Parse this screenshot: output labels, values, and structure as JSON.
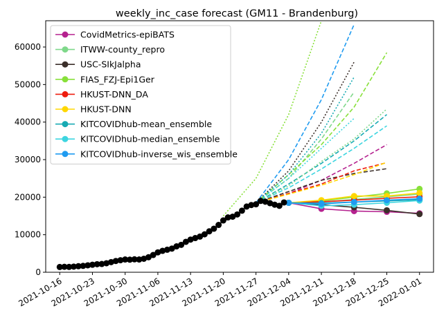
{
  "chart_data": {
    "type": "line",
    "title": "weekly_inc_case forecast (GM11 - Brandenburg)",
    "xlabel": "",
    "ylabel": "",
    "ylim": [
      0,
      67000
    ],
    "xlim": [
      "2021-10-13",
      "2022-01-04"
    ],
    "x_tick_labels": [
      "2021-10-16",
      "2021-10-23",
      "2021-10-30",
      "2021-11-06",
      "2021-11-13",
      "2021-11-20",
      "2021-11-27",
      "2021-12-04",
      "2021-12-11",
      "2021-12-18",
      "2021-12-25",
      "2022-01-01"
    ],
    "y_ticks": [
      0,
      10000,
      20000,
      30000,
      40000,
      50000,
      60000
    ],
    "y_tick_labels": [
      "0",
      "10000",
      "20000",
      "30000",
      "40000",
      "50000",
      "60000"
    ],
    "grid": false,
    "legend_position": "top-left",
    "observed": {
      "color": "#000000",
      "x": [
        "2021-10-16",
        "2021-10-17",
        "2021-10-18",
        "2021-10-19",
        "2021-10-20",
        "2021-10-21",
        "2021-10-22",
        "2021-10-23",
        "2021-10-24",
        "2021-10-25",
        "2021-10-26",
        "2021-10-27",
        "2021-10-28",
        "2021-10-29",
        "2021-10-30",
        "2021-10-31",
        "2021-11-01",
        "2021-11-02",
        "2021-11-03",
        "2021-11-04",
        "2021-11-05",
        "2021-11-06",
        "2021-11-07",
        "2021-11-08",
        "2021-11-09",
        "2021-11-10",
        "2021-11-11",
        "2021-11-12",
        "2021-11-13",
        "2021-11-14",
        "2021-11-15",
        "2021-11-16",
        "2021-11-17",
        "2021-11-18",
        "2021-11-19",
        "2021-11-20",
        "2021-11-21",
        "2021-11-22",
        "2021-11-23",
        "2021-11-24",
        "2021-11-25",
        "2021-11-26",
        "2021-11-27",
        "2021-11-28",
        "2021-11-29",
        "2021-11-30",
        "2021-12-01",
        "2021-12-02",
        "2021-12-03"
      ],
      "y": [
        1400,
        1450,
        1420,
        1500,
        1600,
        1700,
        1850,
        2000,
        2150,
        2200,
        2400,
        2700,
        3000,
        3200,
        3400,
        3350,
        3450,
        3400,
        3600,
        4000,
        4600,
        5300,
        5700,
        6000,
        6300,
        6900,
        7300,
        8100,
        8700,
        9100,
        9500,
        10100,
        10900,
        11600,
        12600,
        13800,
        14600,
        14800,
        15400,
        16400,
        17500,
        17900,
        18100,
        19000,
        18800,
        18400,
        18000,
        17700,
        18600
      ]
    },
    "series": [
      {
        "name": "CovidMetrics-epiBATS",
        "color": "#b5218f",
        "x": [
          "2021-12-04",
          "2021-12-11",
          "2021-12-18",
          "2021-12-25",
          "2022-01-01"
        ],
        "median": [
          18500,
          16900,
          16300,
          16100,
          15700
        ],
        "forecast_x": [
          "2021-11-27",
          "2021-12-04",
          "2021-12-11",
          "2021-12-18",
          "2021-12-25"
        ],
        "forecast": [
          18500,
          21000,
          24500,
          29000,
          34000
        ]
      },
      {
        "name": "ITWW-county_repro",
        "color": "#7fd88a",
        "x": [
          "2021-12-04",
          "2021-12-11",
          "2021-12-18",
          "2021-12-25",
          "2022-01-01"
        ],
        "median": [
          18500,
          18700,
          19400,
          20100,
          20800
        ],
        "forecast_x": [
          "2021-11-27",
          "2021-12-04",
          "2021-12-11",
          "2021-12-18"
        ],
        "forecast": [
          18500,
          25000,
          35500,
          48000
        ]
      },
      {
        "name": "USC-SIkJalpha",
        "color": "#3b2f2a",
        "x": [
          "2021-12-04",
          "2021-12-11",
          "2021-12-18",
          "2021-12-25",
          "2022-01-01"
        ],
        "median": [
          18500,
          18000,
          17300,
          16500,
          15500
        ],
        "forecast_x": [
          "2021-11-27",
          "2021-12-04",
          "2021-12-11",
          "2021-12-18",
          "2021-12-25"
        ],
        "forecast": [
          18500,
          21500,
          24500,
          26300,
          27600
        ]
      },
      {
        "name": "FIAS_FZJ-Epi1Ger",
        "color": "#88e03a",
        "x": [
          "2021-12-04",
          "2021-12-11",
          "2021-12-18",
          "2021-12-25",
          "2022-01-01"
        ],
        "median": [
          18500,
          19000,
          20000,
          21000,
          22200
        ],
        "forecast_x": [
          "2021-11-27",
          "2021-12-04",
          "2021-12-11",
          "2021-12-18",
          "2021-12-25"
        ],
        "forecast": [
          18500,
          26000,
          34000,
          44000,
          58500
        ]
      },
      {
        "name": "HKUST-DNN_DA",
        "color": "#ee1c0e",
        "x": [
          "2021-12-04",
          "2021-12-11",
          "2021-12-18",
          "2021-12-25",
          "2022-01-01"
        ],
        "median": [
          18500,
          18800,
          19200,
          19700,
          20100
        ],
        "forecast_x": [
          "2021-11-27",
          "2021-12-04",
          "2021-12-11",
          "2021-12-18",
          "2021-12-25"
        ],
        "forecast": [
          18500,
          21000,
          23500,
          27000,
          29200
        ]
      },
      {
        "name": "HKUST-DNN",
        "color": "#ffd700",
        "x": [
          "2021-12-04",
          "2021-12-11",
          "2021-12-18",
          "2021-12-25",
          "2022-01-01"
        ],
        "median": [
          18500,
          19200,
          20300,
          20300,
          21100
        ],
        "forecast_x": [
          "2021-11-27",
          "2021-12-04",
          "2021-12-11",
          "2021-12-18",
          "2021-12-25"
        ],
        "forecast": [
          18500,
          20800,
          23200,
          26000,
          29300
        ]
      },
      {
        "name": "KITCOVIDhub-mean_ensemble",
        "color": "#17aab3",
        "x": [
          "2021-12-04",
          "2021-12-11",
          "2021-12-18",
          "2021-12-25",
          "2022-01-01"
        ],
        "median": [
          18500,
          18400,
          18700,
          19000,
          19300
        ],
        "forecast_x": [
          "2021-11-27",
          "2021-12-04",
          "2021-12-11",
          "2021-12-18",
          "2021-12-25"
        ],
        "forecast": [
          18500,
          23500,
          29000,
          35000,
          42000
        ]
      },
      {
        "name": "KITCOVIDhub-median_ensemble",
        "color": "#3dd5e0",
        "x": [
          "2021-12-04",
          "2021-12-11",
          "2021-12-18",
          "2021-12-25",
          "2022-01-01"
        ],
        "median": [
          18500,
          17700,
          18000,
          18500,
          19100
        ],
        "forecast_x": [
          "2021-11-27",
          "2021-12-04",
          "2021-12-11",
          "2021-12-18",
          "2021-12-25"
        ],
        "forecast": [
          18500,
          22500,
          27500,
          33000,
          39000
        ]
      },
      {
        "name": "KITCOVIDhub-inverse_wis_ensemble",
        "color": "#1f9bf0",
        "x": [
          "2021-12-04",
          "2021-12-11",
          "2021-12-18",
          "2021-12-25",
          "2022-01-01"
        ],
        "median": [
          18500,
          18200,
          18700,
          19200,
          19600
        ],
        "forecast_x": [
          "2021-11-27",
          "2021-12-04",
          "2021-12-11",
          "2021-12-18"
        ],
        "forecast": [
          18500,
          30000,
          46000,
          66000
        ]
      }
    ],
    "extra_forecasts": [
      {
        "series": "FIAS_FZJ-Epi1Ger",
        "x": [
          "2021-11-20",
          "2021-11-27",
          "2021-12-04",
          "2021-12-11"
        ],
        "y": [
          15000,
          25000,
          42000,
          67000
        ]
      },
      {
        "series": "USC-SIkJalpha",
        "x": [
          "2021-11-27",
          "2021-12-04",
          "2021-12-11",
          "2021-12-18"
        ],
        "y": [
          18500,
          27000,
          40000,
          56000
        ]
      },
      {
        "series": "KITCOVIDhub-mean_ensemble",
        "x": [
          "2021-11-27",
          "2021-12-04",
          "2021-12-11",
          "2021-12-18"
        ],
        "y": [
          18500,
          26000,
          37000,
          52000
        ]
      },
      {
        "series": "ITWW-county_repro",
        "x": [
          "2021-11-27",
          "2021-12-04",
          "2021-12-11",
          "2021-12-18",
          "2021-12-25"
        ],
        "y": [
          18500,
          23000,
          29500,
          35500,
          43500
        ]
      },
      {
        "series": "KITCOVIDhub-median_ensemble",
        "x": [
          "2021-11-27",
          "2021-12-04",
          "2021-12-11",
          "2021-12-18"
        ],
        "y": [
          18500,
          25000,
          33000,
          41000
        ]
      }
    ]
  }
}
